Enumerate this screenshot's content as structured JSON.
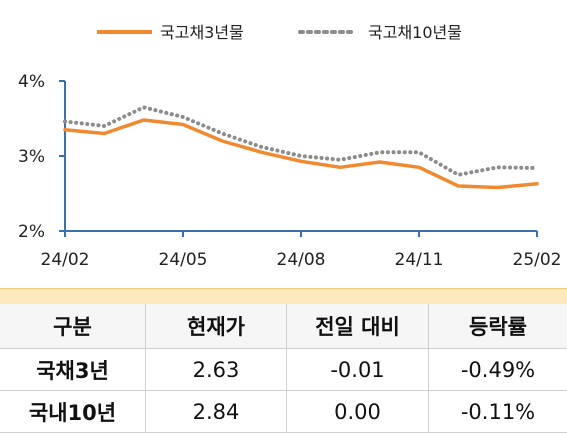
{
  "chart_data": {
    "type": "line",
    "title": "",
    "xlabel": "",
    "ylabel": "",
    "ylim": [
      2,
      4
    ],
    "yticks": [
      "2%",
      "3%",
      "4%"
    ],
    "xticks": [
      "24/02",
      "24/05",
      "24/08",
      "24/11",
      "25/02"
    ],
    "grid": false,
    "legend": "top",
    "series": [
      {
        "name": "국고채3년물",
        "color": "#f0892f",
        "style": "solid",
        "points": [
          [
            "24/02",
            3.35
          ],
          [
            "24/03",
            3.3
          ],
          [
            "24/04",
            3.48
          ],
          [
            "24/05",
            3.42
          ],
          [
            "24/06",
            3.2
          ],
          [
            "24/07",
            3.05
          ],
          [
            "24/08",
            2.93
          ],
          [
            "24/09",
            2.85
          ],
          [
            "24/10",
            2.92
          ],
          [
            "24/11",
            2.85
          ],
          [
            "24/12",
            2.6
          ],
          [
            "25/01",
            2.58
          ],
          [
            "25/02",
            2.63
          ]
        ]
      },
      {
        "name": "국고채10년물",
        "color": "#8c8c8c",
        "style": "dotted",
        "points": [
          [
            "24/02",
            3.46
          ],
          [
            "24/03",
            3.4
          ],
          [
            "24/04",
            3.65
          ],
          [
            "24/05",
            3.52
          ],
          [
            "24/06",
            3.3
          ],
          [
            "24/07",
            3.12
          ],
          [
            "24/08",
            3.0
          ],
          [
            "24/09",
            2.95
          ],
          [
            "24/10",
            3.05
          ],
          [
            "24/11",
            3.05
          ],
          [
            "24/12",
            2.75
          ],
          [
            "25/01",
            2.85
          ],
          [
            "25/02",
            2.84
          ]
        ]
      }
    ]
  },
  "table": {
    "headers": [
      "구분",
      "현재가",
      "전일 대비",
      "등락률"
    ],
    "rows": [
      [
        "국채3년",
        "2.63",
        "-0.01",
        "-0.49%"
      ],
      [
        "국내10년",
        "2.84",
        "0.00",
        "-0.11%"
      ]
    ]
  }
}
